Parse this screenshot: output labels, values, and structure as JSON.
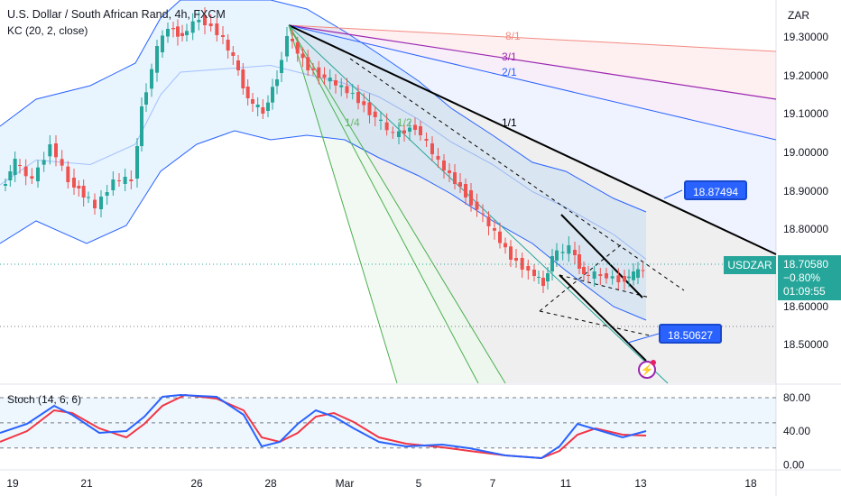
{
  "header": {
    "title": "U.S. Dollar / South African Rand, 4h, FXCM",
    "indicator": "KC (20, 2, close)",
    "stoch_label": "Stoch (14, 6, 6)",
    "currency": "ZAR"
  },
  "colors": {
    "up": "#26a69a",
    "down": "#ef5350",
    "band": "#2962ff",
    "stoch_k": "#2962ff",
    "stoch_d": "#f23645",
    "badge": "#2962ff",
    "last_price_bg": "#26a69a"
  },
  "labels": {
    "target_upper": "18.87494",
    "target_lower": "18.50627",
    "symbol": "USDZAR",
    "last_price": "18.70580",
    "change": "−0.80%",
    "countdown": "01:09:55",
    "fan": [
      "8/1",
      "3/1",
      "2/1",
      "1/1",
      "1/4",
      "1/2"
    ]
  },
  "chart_data": [
    {
      "type": "line",
      "title": "U.S. Dollar / South African Rand, 4h, FXCM",
      "x_ticks": [
        "19",
        "21",
        "26",
        "28",
        "Mar",
        "5",
        "7",
        "11",
        "13",
        "18"
      ],
      "y_ticks": [
        "19.30000",
        "19.20000",
        "19.10000",
        "19.00000",
        "18.90000",
        "18.80000",
        "18.70000",
        "18.60000",
        "18.50000"
      ],
      "ylim": [
        18.42,
        19.36
      ],
      "series": [
        {
          "name": "USDZAR",
          "x": [
            "19",
            "21",
            "24",
            "26",
            "28",
            "Mar",
            "5",
            "7",
            "11",
            "13"
          ],
          "values": [
            18.86,
            18.93,
            19.28,
            19.32,
            19.25,
            19.08,
            18.98,
            18.8,
            18.68,
            18.71
          ]
        },
        {
          "name": "KC upper",
          "x": [
            "19",
            "24",
            "28",
            "Mar",
            "5",
            "7",
            "11",
            "13"
          ],
          "values": [
            19.02,
            19.28,
            19.43,
            19.3,
            19.08,
            18.92,
            18.86,
            18.85
          ]
        },
        {
          "name": "KC lower",
          "x": [
            "19",
            "24",
            "28",
            "Mar",
            "5",
            "7",
            "11",
            "13"
          ],
          "values": [
            18.72,
            18.95,
            19.02,
            18.98,
            18.82,
            18.64,
            18.58,
            18.57
          ]
        }
      ],
      "last_price": 18.7058,
      "change_pct": -0.8,
      "annotations": [
        {
          "text": "18.87494",
          "value": 18.87494
        },
        {
          "text": "18.50627",
          "value": 18.50627
        }
      ]
    },
    {
      "type": "line",
      "title": "Stoch (14, 6, 6)",
      "y_ticks": [
        "80.00",
        "40.00",
        "0.00"
      ],
      "ylim": [
        -5,
        95
      ],
      "series": [
        {
          "name": "%K",
          "x": [
            "19",
            "21",
            "24",
            "26",
            "28",
            "Mar",
            "5",
            "7",
            "11",
            "13"
          ],
          "values": [
            20,
            65,
            55,
            88,
            20,
            72,
            12,
            5,
            50,
            45
          ]
        },
        {
          "name": "%D",
          "x": [
            "19",
            "21",
            "24",
            "26",
            "28",
            "Mar",
            "5",
            "7",
            "11",
            "13"
          ],
          "values": [
            35,
            55,
            60,
            85,
            35,
            60,
            10,
            5,
            38,
            40
          ]
        }
      ]
    }
  ]
}
